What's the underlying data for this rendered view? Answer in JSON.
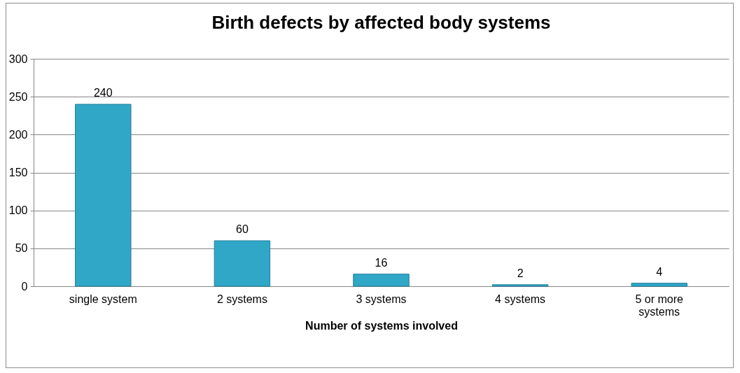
{
  "chart_data": {
    "type": "bar",
    "title": "Birth defects by affected body systems",
    "xlabel": "Number of systems involved",
    "categories": [
      "single system",
      "2 systems",
      "3 systems",
      "4 systems",
      "5 or more systems"
    ],
    "values": [
      240,
      60,
      16,
      2,
      4
    ],
    "color": "#31a7c8",
    "ylim": [
      0,
      300
    ],
    "yticks": [
      0,
      50,
      100,
      150,
      200,
      250,
      300
    ],
    "grid": "y",
    "data_labels": true
  }
}
